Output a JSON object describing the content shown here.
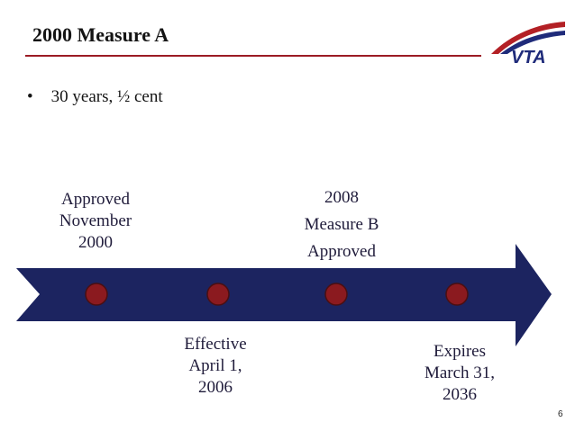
{
  "slide": {
    "title": "2000 Measure A",
    "bullet_symbol": "•",
    "bullet_text": "30 years, ½ cent",
    "page_number": "6"
  },
  "logo": {
    "text": "VTA",
    "colors": {
      "blue": "#1f2b7a",
      "red": "#b32025"
    }
  },
  "timeline": {
    "arrow_color": "#1c2460",
    "marker_color": "#8b1a1f",
    "events": [
      {
        "lines": [
          "Approved",
          "November",
          "2000"
        ]
      },
      {
        "lines": [
          "2008",
          "Measure B",
          "Approved"
        ]
      },
      {
        "lines": [
          "Effective",
          "April 1,",
          "2006"
        ]
      },
      {
        "lines": [
          "Expires",
          "March 31,",
          "2036"
        ]
      }
    ]
  }
}
